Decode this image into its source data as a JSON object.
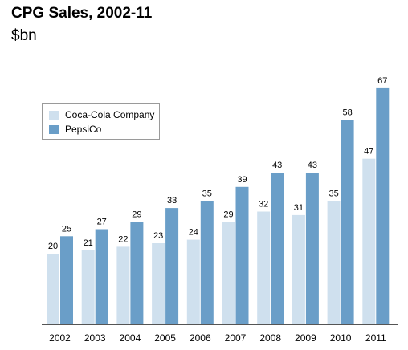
{
  "colors": {
    "coca_cola": "#cfe0ee",
    "pepsico": "#6a9ec8",
    "axis": "#555555"
  },
  "chart_data": {
    "type": "bar",
    "title": "CPG Sales, 2002-11",
    "subtitle": "$bn",
    "xlabel": "",
    "ylabel": "",
    "ylim": [
      0,
      72
    ],
    "grid": false,
    "legend_position": "top-left",
    "categories": [
      "2002",
      "2003",
      "2004",
      "2005",
      "2006",
      "2007",
      "2008",
      "2009",
      "2010",
      "2011"
    ],
    "series": [
      {
        "name": "Coca-Cola Company",
        "color": "#cfe0ee",
        "values": [
          20,
          21,
          22,
          23,
          24,
          29,
          32,
          31,
          35,
          47
        ]
      },
      {
        "name": "PepsiCo",
        "color": "#6a9ec8",
        "values": [
          25,
          27,
          29,
          33,
          35,
          39,
          43,
          43,
          58,
          67
        ]
      }
    ]
  }
}
